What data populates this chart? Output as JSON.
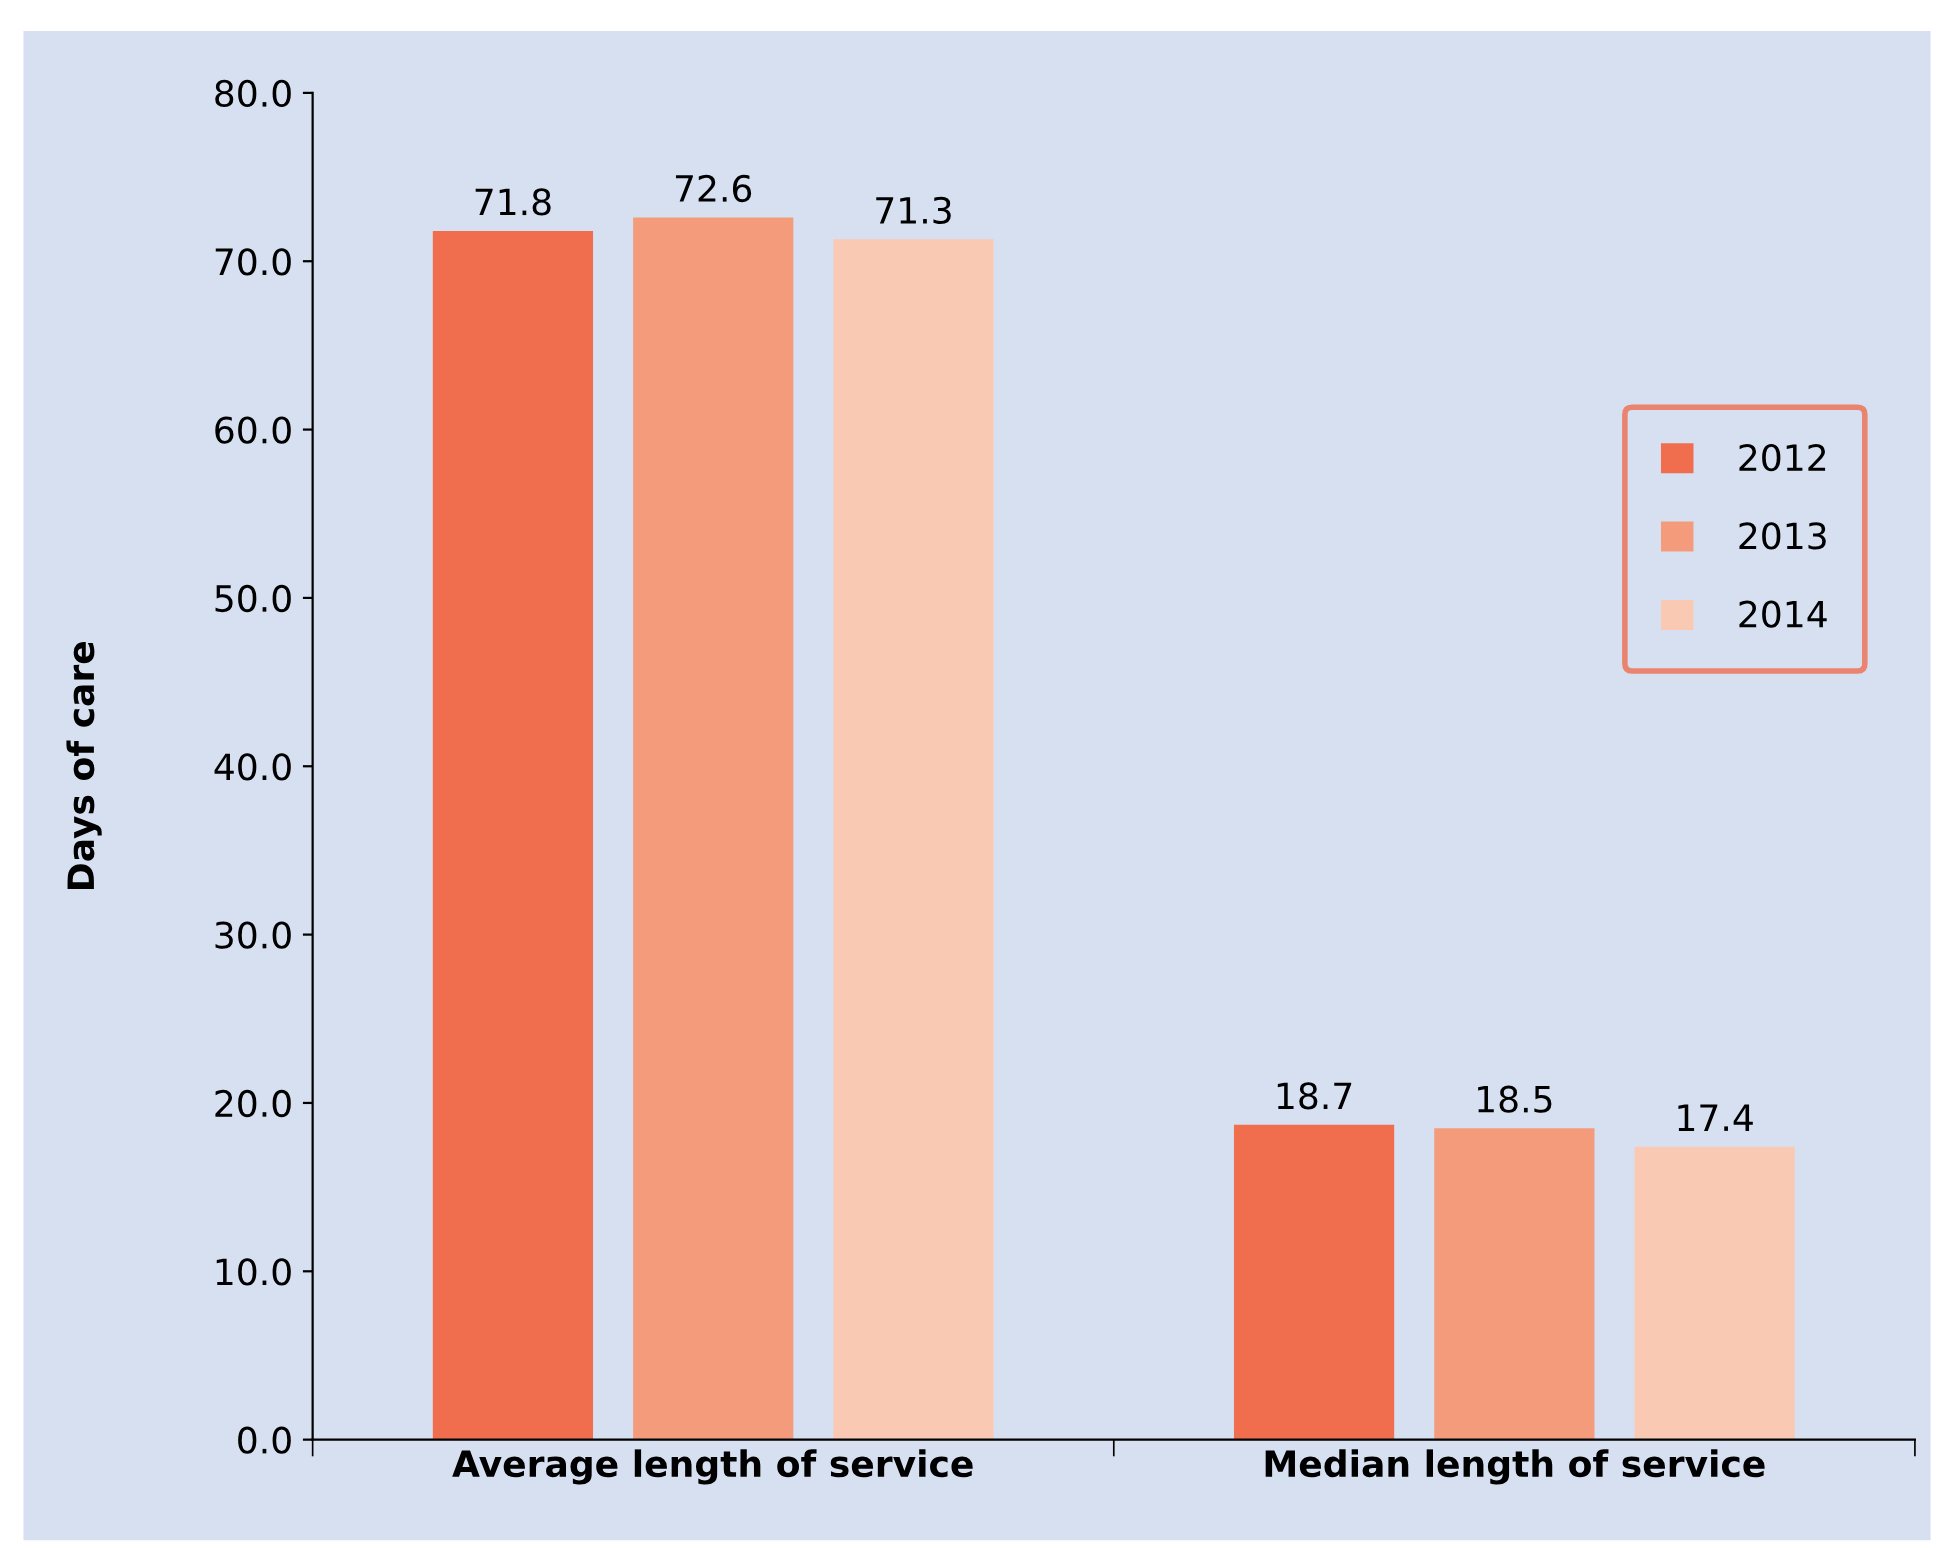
{
  "chart_data": {
    "type": "bar",
    "ylabel": "Days of care",
    "categories": [
      "Average length of service",
      "Median length of service"
    ],
    "series": [
      {
        "name": "2012",
        "color": "#f06e4e",
        "values": [
          71.8,
          18.7
        ]
      },
      {
        "name": "2013",
        "color": "#f49b7b",
        "values": [
          72.6,
          18.5
        ]
      },
      {
        "name": "2014",
        "color": "#f9c9b3",
        "values": [
          71.3,
          17.4
        ]
      }
    ],
    "ylim": [
      0,
      80
    ],
    "yticks": [
      {
        "value": 0,
        "label": "0.0"
      },
      {
        "value": 10,
        "label": "10.0"
      },
      {
        "value": 20,
        "label": "20.0"
      },
      {
        "value": 30,
        "label": "30.0"
      },
      {
        "value": 40,
        "label": "40.0"
      },
      {
        "value": 50,
        "label": "50.0"
      },
      {
        "value": 60,
        "label": "60.0"
      },
      {
        "value": 70,
        "label": "70.0"
      },
      {
        "value": 80,
        "label": "80.0"
      }
    ],
    "data_labels": true,
    "grid": false,
    "legend": "top right"
  }
}
